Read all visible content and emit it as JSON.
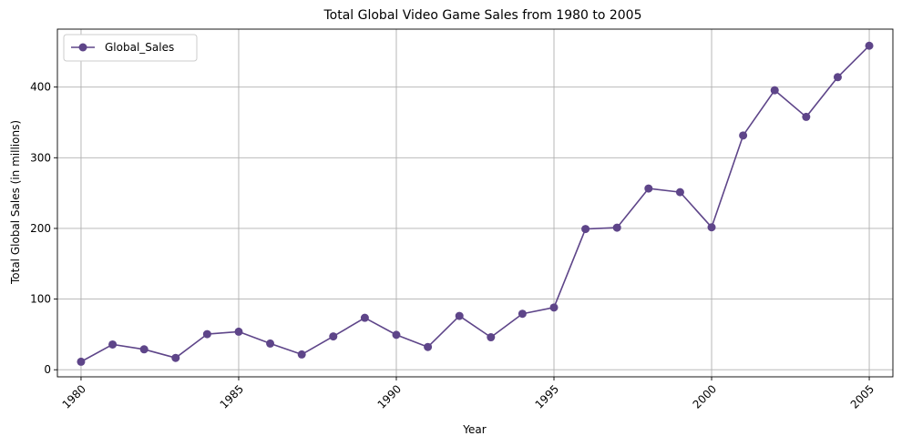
{
  "chart_data": {
    "type": "line",
    "title": "Total Global Video Game Sales from 1980 to 2005",
    "xlabel": "Year",
    "ylabel": "Total Global Sales (in millions)",
    "xlim": [
      1979.25,
      2005.75
    ],
    "ylim": [
      -10,
      482
    ],
    "grid": true,
    "legend_position": "top-left",
    "x_ticks": [
      1980,
      1985,
      1990,
      1995,
      2000,
      2005
    ],
    "y_ticks": [
      0,
      100,
      200,
      300,
      400
    ],
    "x_tick_rotation": -45,
    "series": [
      {
        "name": "Global_Sales",
        "color": "#5e4589",
        "marker": "circle",
        "x": [
          1980,
          1981,
          1982,
          1983,
          1984,
          1985,
          1986,
          1987,
          1988,
          1989,
          1990,
          1991,
          1992,
          1993,
          1994,
          1995,
          1996,
          1997,
          1998,
          1999,
          2000,
          2001,
          2002,
          2003,
          2004,
          2005
        ],
        "y": [
          11.4,
          35.8,
          28.9,
          16.8,
          50.4,
          53.9,
          37.1,
          21.7,
          47.2,
          73.5,
          49.4,
          32.2,
          76.2,
          46.0,
          79.2,
          88.1,
          199.2,
          201.1,
          256.5,
          251.3,
          201.6,
          331.5,
          395.5,
          357.8,
          414.0,
          458.5
        ]
      }
    ]
  }
}
